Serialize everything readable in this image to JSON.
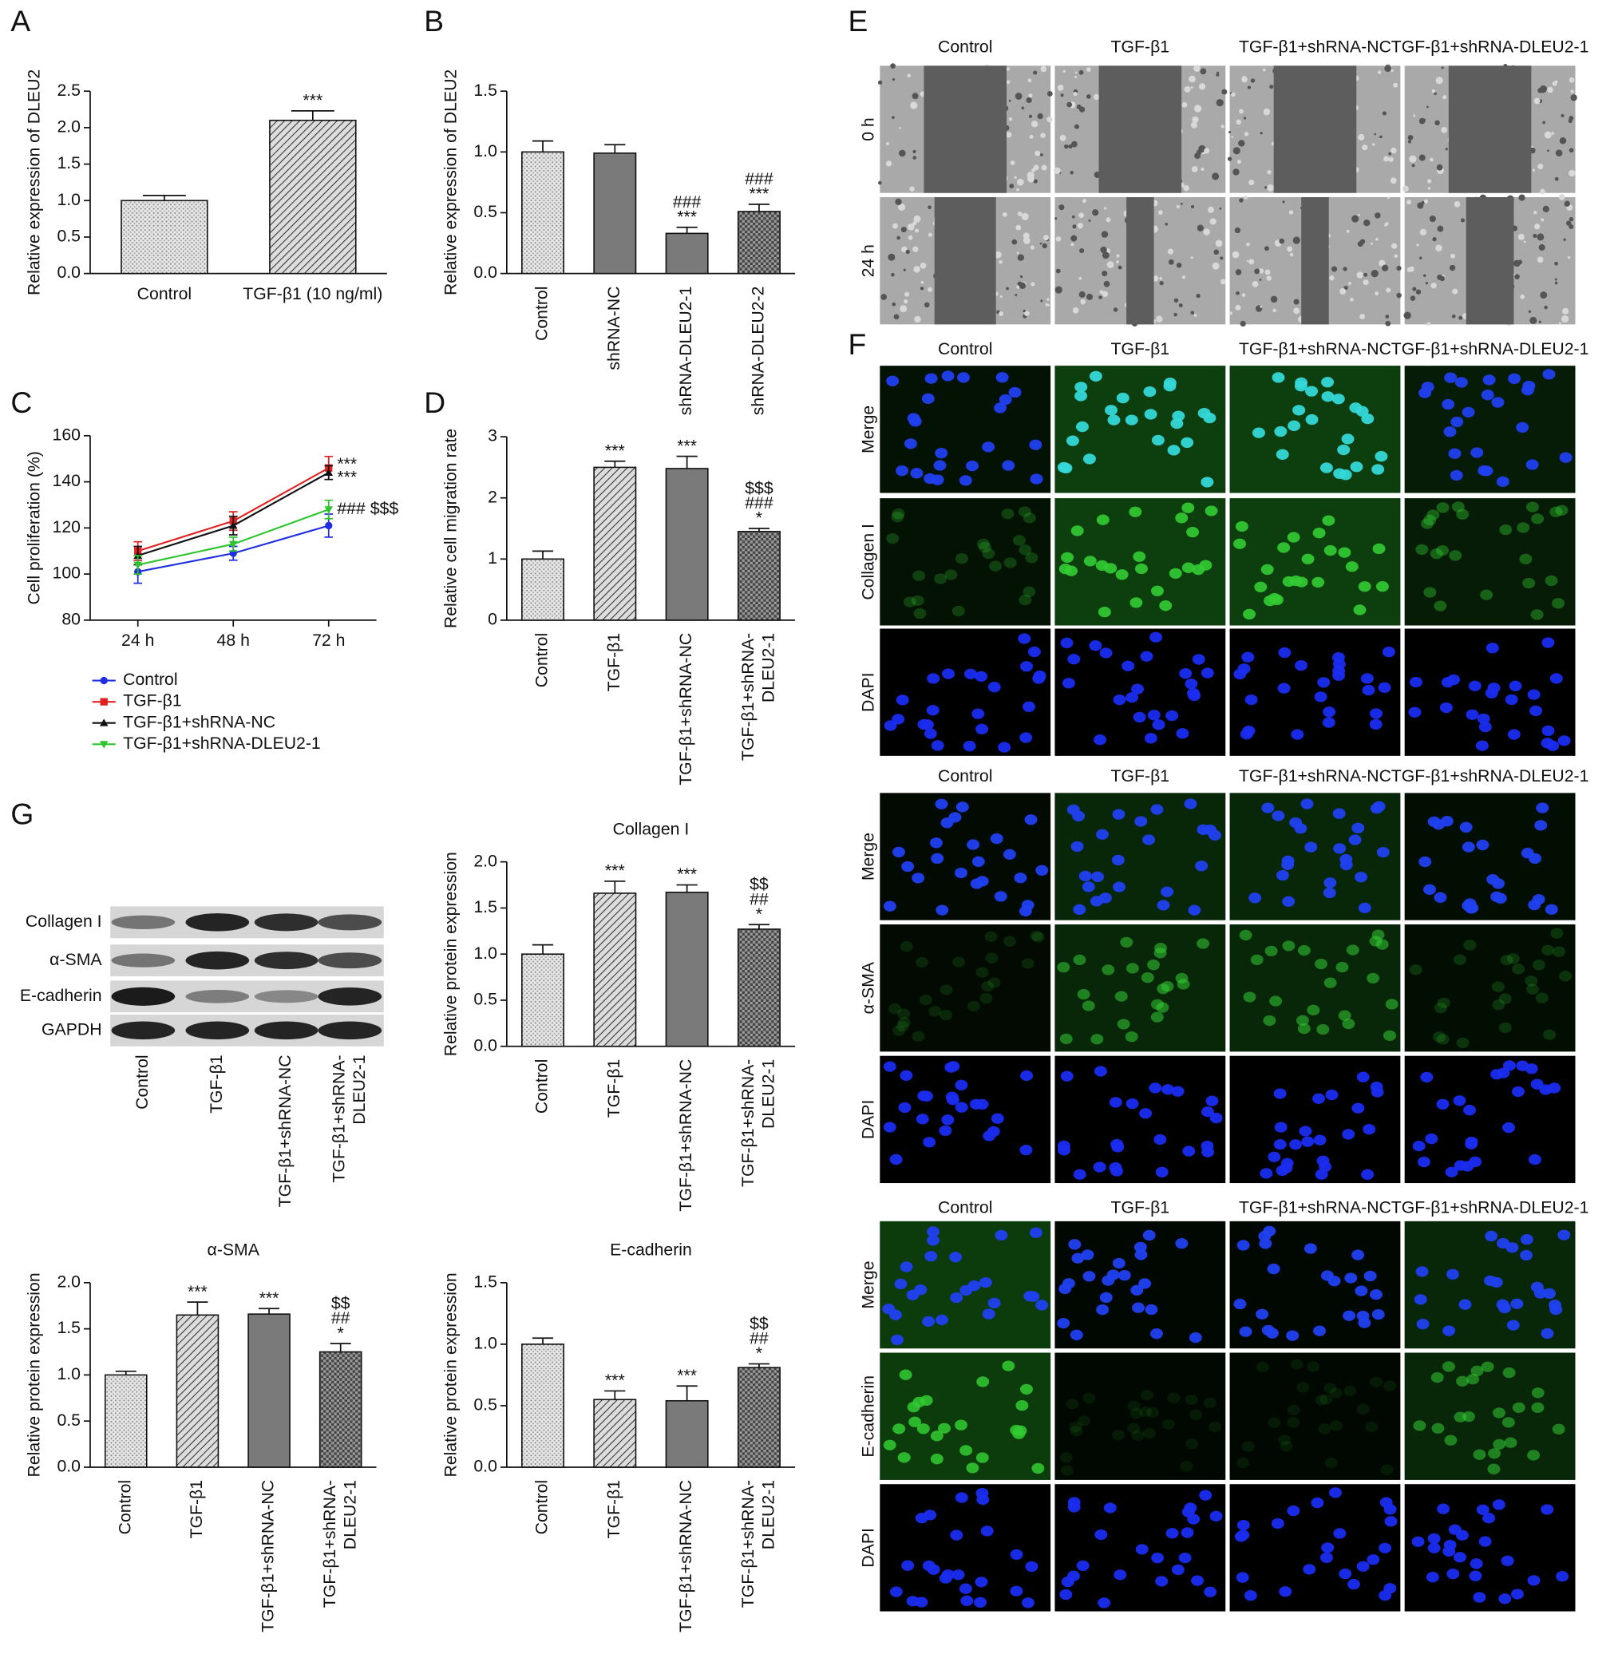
{
  "panel_labels": [
    "A",
    "B",
    "C",
    "D",
    "E",
    "F",
    "G"
  ],
  "chart_data": [
    {
      "type": "bar",
      "ylabel": "Relative expression of DLEU2",
      "categories": [
        "Control",
        "TGF-β1 (10 ng/ml)"
      ],
      "values": [
        1.0,
        2.1
      ],
      "errors": [
        0.07,
        0.13
      ],
      "annotations": [
        null,
        [
          "***"
        ]
      ],
      "bar_styles": [
        "dotted",
        "hatched"
      ],
      "ylim": [
        0,
        2.5
      ],
      "yticks": [
        {
          "value": 0,
          "label": "0.0"
        },
        0.5,
        {
          "value": 1,
          "label": "1.0"
        },
        1.5,
        {
          "value": 2,
          "label": "2.0"
        },
        2.5
      ],
      "rotate_labels": false
    },
    {
      "type": "bar",
      "ylabel": "Relative expression of DLEU2",
      "categories": [
        "Control",
        "shRNA-NC",
        "shRNA-DLEU2-1",
        "shRNA-DLEU2-2"
      ],
      "values": [
        1.0,
        0.99,
        0.33,
        0.51
      ],
      "errors": [
        0.09,
        0.07,
        0.05,
        0.06
      ],
      "annotations": [
        null,
        null,
        [
          "###",
          "***"
        ],
        [
          "###",
          "***"
        ]
      ],
      "bar_styles": [
        "dotted",
        "dark",
        "dark",
        "checked"
      ],
      "ylim": [
        0,
        1.5
      ],
      "yticks": [
        {
          "value": 0,
          "label": "0.0"
        },
        0.5,
        {
          "value": 1,
          "label": "1.0"
        },
        1.5
      ],
      "rotate_labels": true
    },
    {
      "type": "line",
      "ylabel": "Cell proliferation (%)",
      "categories": [
        "24 h",
        "48 h",
        "72 h"
      ],
      "series": [
        {
          "name": "Control",
          "color": "#1f2ee0",
          "marker": "circle",
          "values": [
            101,
            109,
            121
          ],
          "errors": [
            5,
            3,
            5
          ]
        },
        {
          "name": "TGF-β1",
          "color": "#e0201f",
          "marker": "square",
          "values": [
            110,
            123,
            146
          ],
          "errors": [
            4,
            4,
            5
          ],
          "annotation": "***"
        },
        {
          "name": "TGF-β1+shRNA-NC",
          "color": "#111111",
          "marker": "triangle",
          "values": [
            108,
            121,
            144
          ],
          "errors": [
            4,
            4,
            3
          ],
          "annotation": "***"
        },
        {
          "name": "TGF-β1+shRNA-DLEU2-1",
          "color": "#2ec42e",
          "marker": "triangle-down",
          "values": [
            104,
            113,
            128
          ],
          "errors": [
            4,
            3,
            4
          ],
          "annotation": "### $$$"
        }
      ],
      "ylim": [
        80,
        160
      ],
      "yticks": [
        80,
        100,
        120,
        140,
        160
      ],
      "legend": "below"
    },
    {
      "type": "bar",
      "ylabel": "Relative cell migration rate",
      "categories": [
        "Control",
        "TGF-β1",
        "TGF-β1+shRNA-NC",
        "TGF-β1+shRNA-DLEU2-1"
      ],
      "values": [
        1.0,
        2.5,
        2.48,
        1.45
      ],
      "errors": [
        0.13,
        0.1,
        0.2,
        0.05
      ],
      "annotations": [
        null,
        [
          "***"
        ],
        [
          "***"
        ],
        [
          "$$$",
          "###",
          "*"
        ]
      ],
      "bar_styles": [
        "dotted",
        "hatched",
        "dark",
        "checked"
      ],
      "ylim": [
        0,
        3
      ],
      "yticks": [
        0,
        1,
        2,
        3
      ],
      "rotate_labels": true
    },
    {
      "type": "bar",
      "title": "Collagen I",
      "ylabel": "Relative protein expression",
      "categories": [
        "Control",
        "TGF-β1",
        "TGF-β1+shRNA-NC",
        "TGF-β1+shRNA-DLEU2-1"
      ],
      "values": [
        1.0,
        1.66,
        1.67,
        1.27
      ],
      "errors": [
        0.1,
        0.13,
        0.08,
        0.05
      ],
      "annotations": [
        null,
        [
          "***"
        ],
        [
          "***"
        ],
        [
          "$$",
          "##",
          "*"
        ]
      ],
      "bar_styles": [
        "dotted",
        "hatched",
        "dark",
        "checked"
      ],
      "ylim": [
        0,
        2
      ],
      "yticks": [
        {
          "value": 0,
          "label": "0.0"
        },
        0.5,
        {
          "value": 1,
          "label": "1.0"
        },
        1.5,
        {
          "value": 2,
          "label": "2.0"
        }
      ],
      "rotate_labels": true
    },
    {
      "type": "bar",
      "title": "α-SMA",
      "ylabel": "Relative protein expression",
      "categories": [
        "Control",
        "TGF-β1",
        "TGF-β1+shRNA-NC",
        "TGF-β1+shRNA-DLEU2-1"
      ],
      "values": [
        1.0,
        1.65,
        1.66,
        1.25
      ],
      "errors": [
        0.04,
        0.14,
        0.06,
        0.09
      ],
      "annotations": [
        null,
        [
          "***"
        ],
        [
          "***"
        ],
        [
          "$$",
          "##",
          "*"
        ]
      ],
      "bar_styles": [
        "dotted",
        "hatched",
        "dark",
        "checked"
      ],
      "ylim": [
        0,
        2
      ],
      "yticks": [
        {
          "value": 0,
          "label": "0.0"
        },
        0.5,
        {
          "value": 1,
          "label": "1.0"
        },
        1.5,
        {
          "value": 2,
          "label": "2.0"
        }
      ],
      "rotate_labels": true
    },
    {
      "type": "bar",
      "title": "E-cadherin",
      "ylabel": "Relative protein expression",
      "categories": [
        "Control",
        "TGF-β1",
        "TGF-β1+shRNA-NC",
        "TGF-β1+shRNA-DLEU2-1"
      ],
      "values": [
        1.0,
        0.55,
        0.54,
        0.81
      ],
      "errors": [
        0.05,
        0.07,
        0.12,
        0.03
      ],
      "annotations": [
        null,
        [
          "***"
        ],
        [
          "***"
        ],
        [
          "$$",
          "##",
          "*"
        ]
      ],
      "bar_styles": [
        "dotted",
        "hatched",
        "dark",
        "checked"
      ],
      "ylim": [
        0,
        1.5
      ],
      "yticks": [
        {
          "value": 0,
          "label": "0.0"
        },
        0.5,
        {
          "value": 1,
          "label": "1.0"
        },
        1.5
      ],
      "rotate_labels": true
    }
  ],
  "blot": {
    "rows": [
      "Collagen I",
      "α-SMA",
      "E-cadherin",
      "GAPDH"
    ],
    "lanes": [
      "Control",
      "TGF-β1",
      "TGF-β1+shRNA-NC",
      "TGF-β1+shRNA-DLEU2-1"
    ]
  },
  "scratch_assay": {
    "columns": [
      "Control",
      "TGF-β1",
      "TGF-β1+shRNA-NC",
      "TGF-β1+shRNA-DLEU2-1"
    ],
    "rows": [
      "0 h",
      "24 h"
    ]
  },
  "immunofluorescence": [
    {
      "columns": [
        "Control",
        "TGF-β1",
        "TGF-β1+shRNA-NC",
        "TGF-β1+shRNA-DLEU2-1"
      ],
      "rows": [
        "Merge",
        "Collagen I",
        "DAPI"
      ]
    },
    {
      "columns": [
        "Control",
        "TGF-β1",
        "TGF-β1+shRNA-NC",
        "TGF-β1+shRNA-DLEU2-1"
      ],
      "rows": [
        "Merge",
        "α-SMA",
        "DAPI"
      ]
    },
    {
      "columns": [
        "Control",
        "TGF-β1",
        "TGF-β1+shRNA-NC",
        "TGF-β1+shRNA-DLEU2-1"
      ],
      "rows": [
        "Merge",
        "E-cadherin",
        "DAPI"
      ]
    }
  ]
}
